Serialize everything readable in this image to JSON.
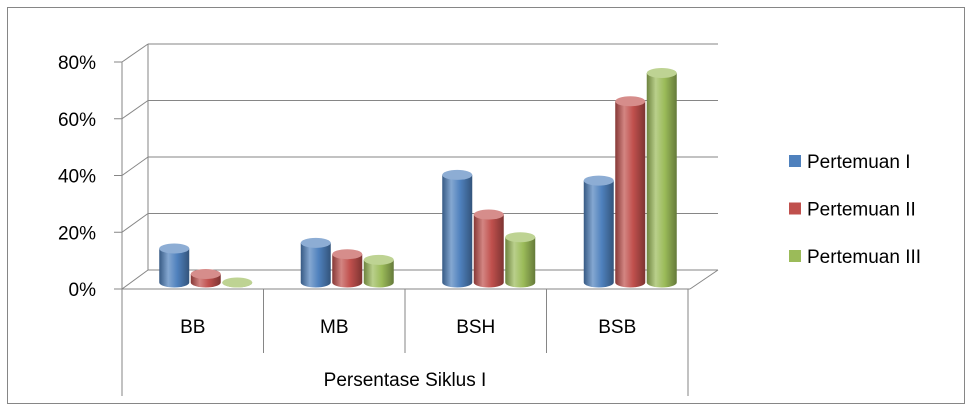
{
  "chart_data": {
    "type": "bar",
    "three_d": true,
    "bar_shape": "cylinder",
    "categories": [
      "BB",
      "MB",
      "BSH",
      "BSB"
    ],
    "series": [
      {
        "name": "Pertemuan I",
        "values": [
          12,
          14,
          38,
          36
        ],
        "color": "#4F81BD"
      },
      {
        "name": "Pertemuan II",
        "values": [
          3,
          10,
          24,
          64
        ],
        "color": "#C0504D"
      },
      {
        "name": "Pertemuan III",
        "values": [
          0,
          8,
          16,
          74
        ],
        "color": "#9BBB59"
      }
    ],
    "xlabel": "Persentase Siklus I",
    "y_unit": "%",
    "ylim": [
      0,
      80
    ],
    "yticks": [
      0,
      20,
      40,
      60,
      80
    ],
    "ytick_labels": [
      "0%",
      "20%",
      "40%",
      "60%",
      "80%"
    ],
    "grid": true,
    "legend": "right"
  }
}
